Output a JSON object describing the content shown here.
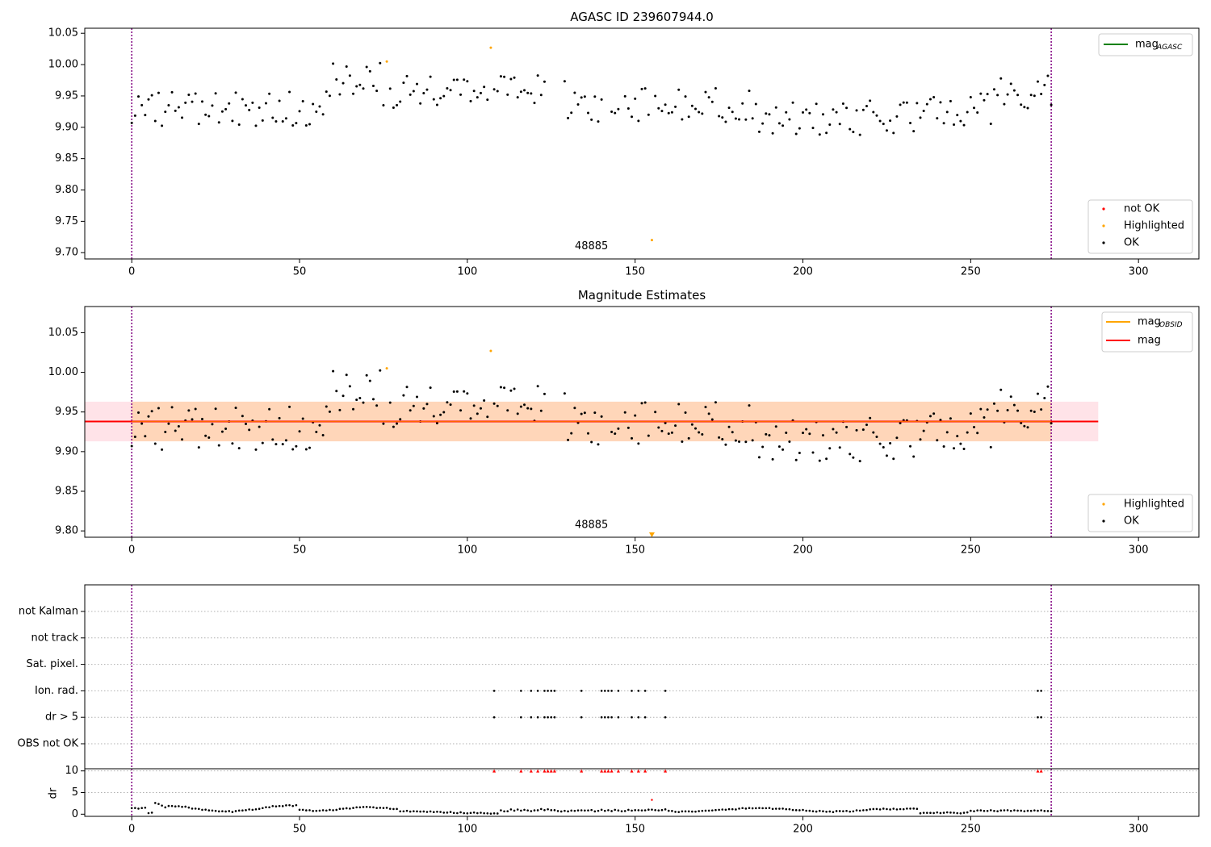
{
  "chart_data": [
    {
      "id": "agasc",
      "type": "scatter",
      "title": "AGASC ID 239607944.0",
      "xlim": [
        -14,
        318
      ],
      "ylim": [
        9.69,
        10.058
      ],
      "xticks": [
        0,
        50,
        100,
        150,
        200,
        250,
        300
      ],
      "yticks": [
        9.7,
        9.75,
        9.8,
        9.85,
        9.9,
        9.95,
        10.0,
        10.05
      ],
      "ytick_labels": [
        "9.70",
        "9.75",
        "9.80",
        "9.85",
        "9.90",
        "9.95",
        "10.00",
        "10.05"
      ],
      "obsid_label": {
        "text": "48885",
        "x": 137,
        "y": 9.701
      },
      "vlines": [
        0,
        274
      ],
      "legend_lines": [
        {
          "label": "mag",
          "sub": "AGASC",
          "color": "#008000"
        }
      ],
      "legend_markers": [
        {
          "label": "not OK",
          "color": "#ff0000"
        },
        {
          "label": "Highlighted",
          "color": "#ffa500"
        },
        {
          "label": "OK",
          "color": "#000000"
        }
      ],
      "highlighted": [
        [
          76,
          10.005
        ],
        [
          107,
          10.027
        ],
        [
          155,
          9.72
        ]
      ]
    },
    {
      "id": "estimates",
      "type": "scatter",
      "title": "Magnitude Estimates",
      "xlim": [
        -14,
        318
      ],
      "ylim": [
        9.792,
        10.083
      ],
      "xticks": [
        0,
        50,
        100,
        150,
        200,
        250,
        300
      ],
      "yticks": [
        9.8,
        9.85,
        9.9,
        9.95,
        10.0,
        10.05
      ],
      "ytick_labels": [
        "9.80",
        "9.85",
        "9.90",
        "9.95",
        "10.00",
        "10.05"
      ],
      "obsid_label": {
        "text": "48885",
        "x": 137,
        "y": 9.8
      },
      "vlines": [
        0,
        274
      ],
      "mag_line": {
        "value": 9.938,
        "xmin": -14,
        "xmax": 288,
        "color": "#ff0000"
      },
      "band_outer": {
        "ymin": 9.913,
        "ymax": 9.963,
        "xmin": -14,
        "xmax": 288,
        "color": "#ffc0cb"
      },
      "band_inner": {
        "ymin": 9.913,
        "ymax": 9.963,
        "xmin": 0,
        "xmax": 274,
        "color": "#ffa500"
      },
      "legend_lines": [
        {
          "label": "mag",
          "sub": "OBSID",
          "color": "#ffa500"
        },
        {
          "label": "mag",
          "sub": "",
          "color": "#ff0000"
        }
      ],
      "legend_markers": [
        {
          "label": "Highlighted",
          "color": "#ffa500"
        },
        {
          "label": "OK",
          "color": "#000000"
        }
      ],
      "highlighted": [
        [
          76,
          10.005
        ],
        [
          107,
          10.027
        ]
      ],
      "clipped_marker": {
        "x": 155,
        "y": 9.795,
        "color": "#ffa500"
      }
    },
    {
      "id": "flags",
      "type": "scatter",
      "xlim": [
        -14,
        318
      ],
      "vlines": [
        0,
        274
      ],
      "rows": [
        "not Kalman",
        "not track",
        "Sat. pixel.",
        "Ion. rad.",
        "dr > 5",
        "OBS not OK"
      ],
      "flag_points": {
        "Ion. rad.": [
          108,
          116,
          119,
          121,
          123,
          124,
          125,
          126,
          134,
          140,
          141,
          142,
          143,
          145,
          149,
          151,
          153,
          159,
          270,
          271
        ],
        "dr > 5": [
          108,
          116,
          119,
          121,
          123,
          124,
          125,
          126,
          134,
          140,
          141,
          142,
          143,
          145,
          149,
          151,
          153,
          159,
          270,
          271
        ]
      }
    },
    {
      "id": "dr",
      "type": "scatter",
      "ylabel": "dr",
      "xlim": [
        -14,
        318
      ],
      "ylim": [
        -0.5,
        10.5
      ],
      "xticks": [
        0,
        50,
        100,
        150,
        200,
        250,
        300
      ],
      "yticks": [
        0,
        5,
        10
      ],
      "ytick_labels": [
        "0",
        "5",
        "10"
      ],
      "vlines": [
        0,
        274
      ],
      "big_dr_x": [
        108,
        116,
        119,
        121,
        123,
        124,
        125,
        126,
        134,
        140,
        141,
        142,
        143,
        145,
        149,
        151,
        153,
        159,
        270,
        271
      ],
      "big_dr_value": 10,
      "highlighted": [
        [
          155,
          3.3
        ]
      ]
    }
  ]
}
